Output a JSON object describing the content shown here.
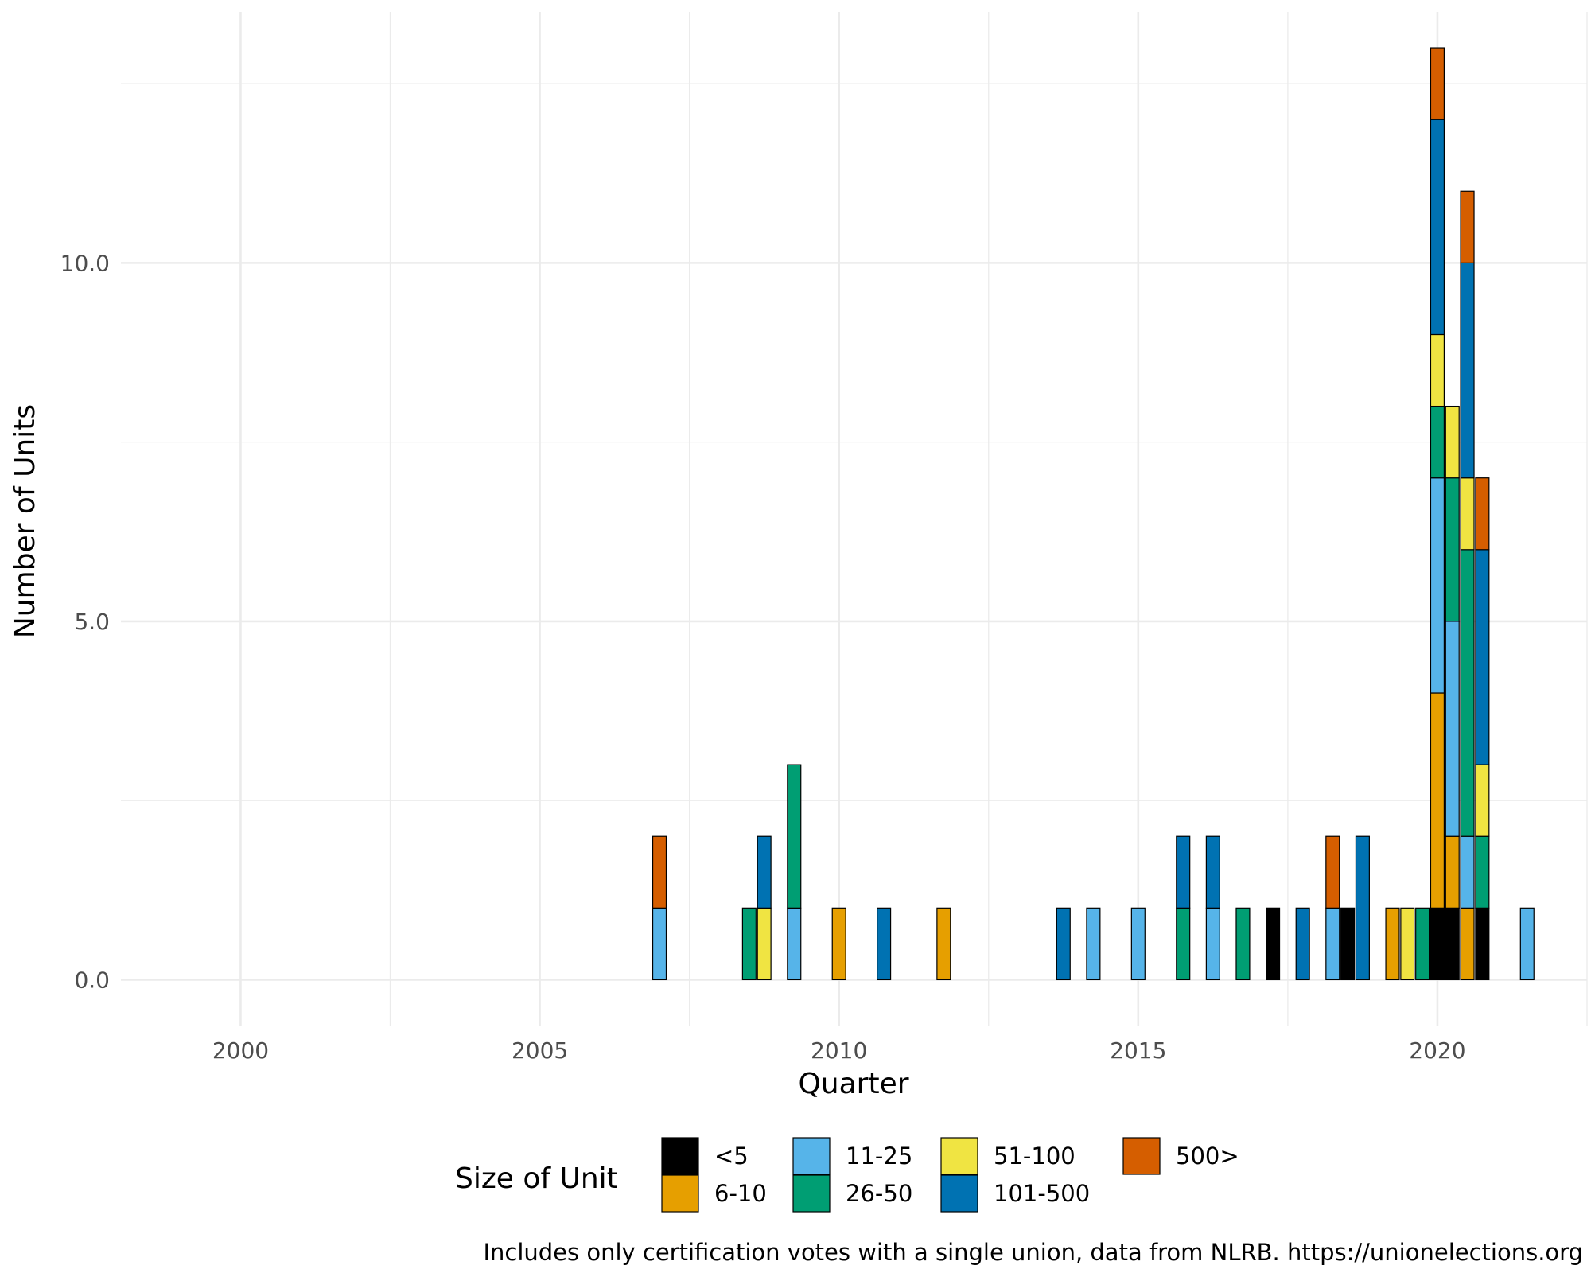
{
  "chart_data": {
    "type": "bar",
    "stacked": true,
    "xlabel": "Quarter",
    "ylabel": "Number of Units",
    "xlim": [
      1998,
      2022.5
    ],
    "ylim": [
      -0.65,
      13.5
    ],
    "x_ticks": [
      2000,
      2005,
      2010,
      2015,
      2020
    ],
    "y_ticks": [
      0.0,
      5.0,
      10.0
    ],
    "x_tick_labels": [
      "2000",
      "2005",
      "2010",
      "2015",
      "2020"
    ],
    "y_tick_labels": [
      "0.0",
      "5.0",
      "10.0"
    ],
    "grid": true,
    "legend": {
      "title": "Size of Unit",
      "position": "bottom",
      "entries": [
        {
          "key": "lt5",
          "label": "<5",
          "color": "#000000"
        },
        {
          "key": "s6_10",
          "label": "6-10",
          "color": "#E69F00"
        },
        {
          "key": "s11_25",
          "label": "11-25",
          "color": "#56B4E9"
        },
        {
          "key": "s26_50",
          "label": "26-50",
          "color": "#009E73"
        },
        {
          "key": "s51_100",
          "label": "51-100",
          "color": "#F0E442"
        },
        {
          "key": "s101_500",
          "label": "101-500",
          "color": "#0072B2"
        },
        {
          "key": "s500p",
          "label": "500>",
          "color": "#D55E00"
        }
      ]
    },
    "caption": "Includes only certification votes with a single union, data from NLRB. https://unionelections.org",
    "stack_order": [
      "lt5",
      "s6_10",
      "s11_25",
      "s26_50",
      "s51_100",
      "s101_500",
      "s500p"
    ],
    "bars": [
      {
        "x": 2007.0,
        "counts": {
          "s11_25": 1,
          "s500p": 1
        }
      },
      {
        "x": 2008.5,
        "counts": {
          "s26_50": 1
        }
      },
      {
        "x": 2008.75,
        "counts": {
          "s51_100": 1,
          "s101_500": 1
        }
      },
      {
        "x": 2009.25,
        "counts": {
          "s11_25": 1,
          "s26_50": 2
        }
      },
      {
        "x": 2010.0,
        "counts": {
          "s6_10": 1
        }
      },
      {
        "x": 2010.75,
        "counts": {
          "s101_500": 1
        }
      },
      {
        "x": 2011.75,
        "counts": {
          "s6_10": 1
        }
      },
      {
        "x": 2013.75,
        "counts": {
          "s101_500": 1
        }
      },
      {
        "x": 2014.25,
        "counts": {
          "s11_25": 1
        }
      },
      {
        "x": 2015.0,
        "counts": {
          "s11_25": 1
        }
      },
      {
        "x": 2015.75,
        "counts": {
          "s26_50": 1,
          "s101_500": 1
        }
      },
      {
        "x": 2016.25,
        "counts": {
          "s11_25": 1,
          "s101_500": 1
        }
      },
      {
        "x": 2016.75,
        "counts": {
          "s26_50": 1
        }
      },
      {
        "x": 2017.25,
        "counts": {
          "lt5": 1
        }
      },
      {
        "x": 2017.75,
        "counts": {
          "s101_500": 1
        }
      },
      {
        "x": 2018.25,
        "counts": {
          "s11_25": 1,
          "s500p": 1
        }
      },
      {
        "x": 2018.5,
        "counts": {
          "lt5": 1
        }
      },
      {
        "x": 2018.75,
        "counts": {
          "s101_500": 2
        }
      },
      {
        "x": 2019.25,
        "counts": {
          "s6_10": 1
        }
      },
      {
        "x": 2019.5,
        "counts": {
          "s51_100": 1
        }
      },
      {
        "x": 2019.75,
        "counts": {
          "s26_50": 1
        }
      },
      {
        "x": 2020.0,
        "counts": {
          "lt5": 1,
          "s6_10": 3,
          "s11_25": 3,
          "s26_50": 1,
          "s51_100": 1,
          "s101_500": 3,
          "s500p": 1
        }
      },
      {
        "x": 2020.25,
        "counts": {
          "lt5": 1,
          "s6_10": 1,
          "s11_25": 3,
          "s26_50": 2,
          "s51_100": 1
        }
      },
      {
        "x": 2020.5,
        "counts": {
          "s6_10": 1,
          "s11_25": 1,
          "s26_50": 4,
          "s51_100": 1,
          "s101_500": 3,
          "s500p": 1
        }
      },
      {
        "x": 2020.75,
        "counts": {
          "lt5": 1,
          "s26_50": 1,
          "s51_100": 1,
          "s101_500": 3,
          "s500p": 1
        }
      },
      {
        "x": 2021.5,
        "counts": {
          "s11_25": 1
        }
      }
    ]
  }
}
